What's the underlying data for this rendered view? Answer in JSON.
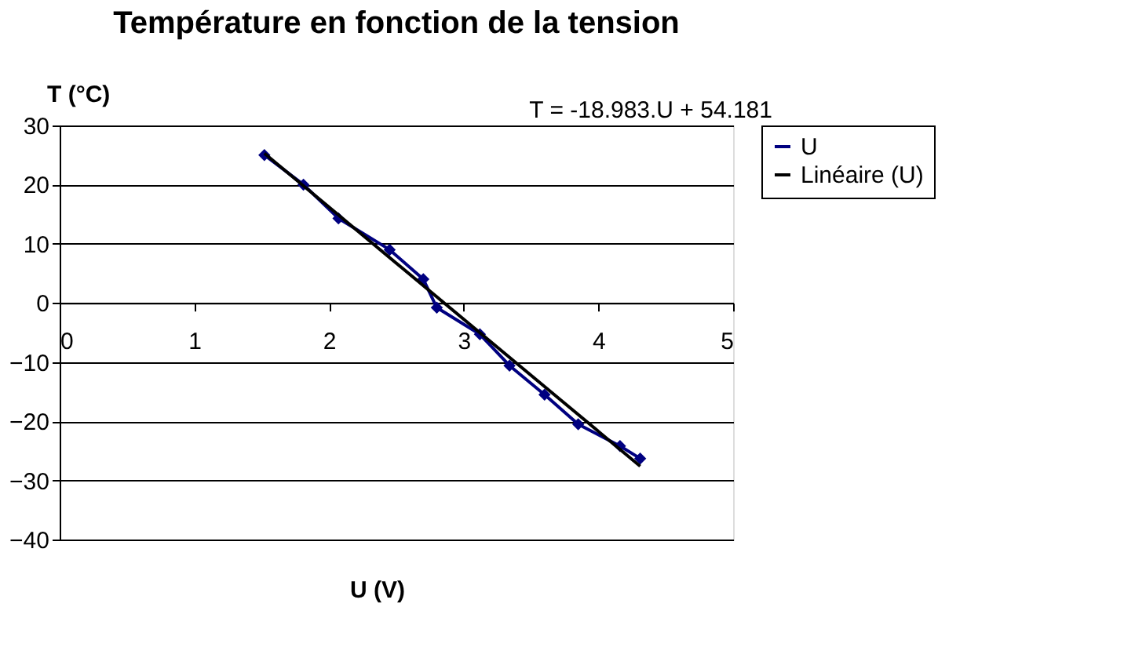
{
  "chart_data": {
    "type": "line",
    "title": "Température en fonction de la tension",
    "xlabel": "U (V)",
    "ylabel": "T (°C)",
    "annotations": [
      "T = -18.983.U + 54.181"
    ],
    "xlim": [
      0,
      5
    ],
    "xticks": [
      0,
      1,
      2,
      3,
      4,
      5
    ],
    "ylim": [
      -40,
      30
    ],
    "yticks": [
      -40,
      -30,
      -20,
      -10,
      0,
      10,
      20,
      30
    ],
    "grid": "y",
    "legend": "right",
    "series": [
      {
        "name": "U",
        "marker": "diamond",
        "color": "#000080",
        "x": [
          1.52,
          1.81,
          2.07,
          2.45,
          2.7,
          2.8,
          3.12,
          3.34,
          3.6,
          3.85,
          4.16,
          4.31
        ],
        "values": [
          25,
          20,
          14.3,
          9,
          4,
          -0.8,
          -5.3,
          -10.6,
          -15.5,
          -20.5,
          -24.2,
          -26.3
        ]
      },
      {
        "name": "Linéaire (U)",
        "marker": "none",
        "color": "#000000",
        "x": [
          1.52,
          4.31
        ],
        "values": [
          25.3,
          -27.6
        ]
      }
    ]
  }
}
